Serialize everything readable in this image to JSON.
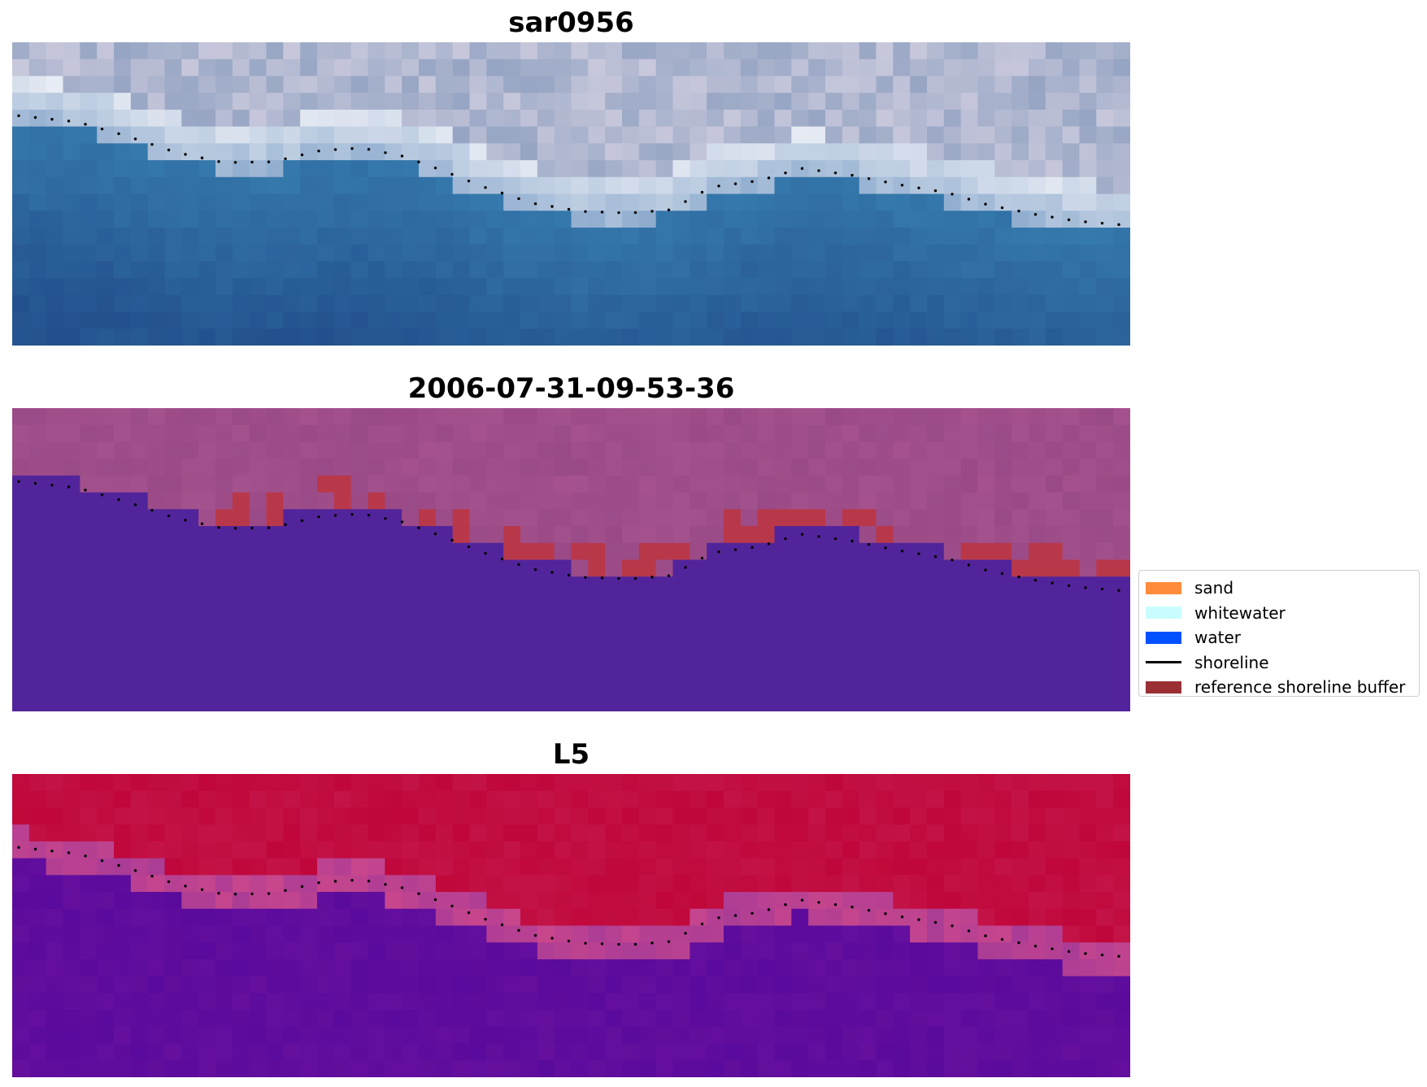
{
  "panels": [
    {
      "title": "sar0956",
      "kind": "rgb"
    },
    {
      "title": "2006-07-31-09-53-36",
      "kind": "class"
    },
    {
      "title": "L5",
      "kind": "index"
    }
  ],
  "legend": {
    "items": [
      {
        "label": "sand",
        "type": "patch",
        "color": "#ff8c3a"
      },
      {
        "label": "whitewater",
        "type": "patch",
        "color": "#c9fdfd"
      },
      {
        "label": "water",
        "type": "patch",
        "color": "#0050ff"
      },
      {
        "label": "shoreline",
        "type": "line",
        "color": "#000000"
      },
      {
        "label": "reference shoreline buffer",
        "type": "patch",
        "color": "#9b3034"
      }
    ]
  },
  "colors": {
    "water_class": "#52249b",
    "buffer": "#b8384a",
    "land_class": "#9a4a86",
    "index_high": "#c0063a",
    "index_low": "#5a0a9c"
  }
}
